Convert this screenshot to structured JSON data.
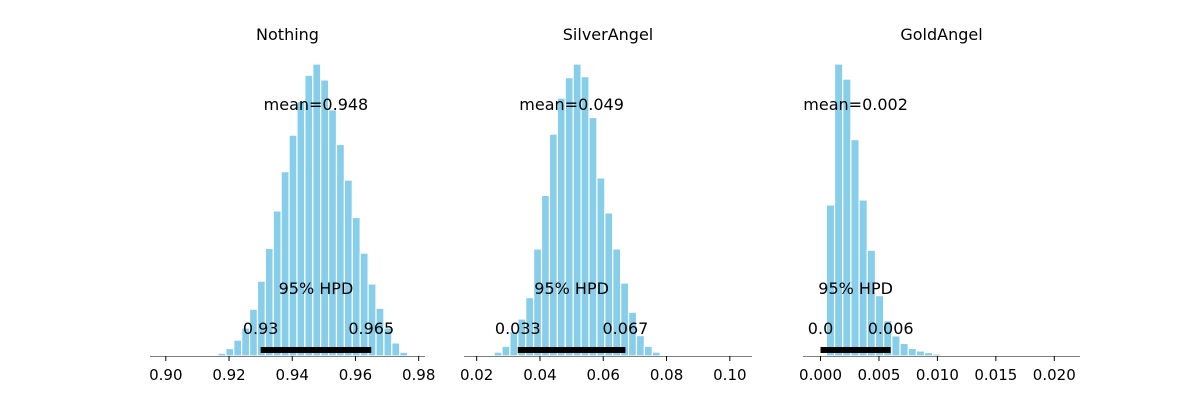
{
  "colors": {
    "bar": "#87ceeb",
    "hpd": "#000000",
    "axis": "#808080"
  },
  "chart_data": [
    {
      "type": "bar",
      "title": "Nothing",
      "xlim": [
        0.895,
        0.982
      ],
      "xticks": [
        0.9,
        0.92,
        0.94,
        0.96,
        0.98
      ],
      "xtick_labels": [
        "0.90",
        "0.92",
        "0.94",
        "0.96",
        "0.98"
      ],
      "bin_starts": [
        0.914,
        0.9165,
        0.919,
        0.9215,
        0.924,
        0.9265,
        0.929,
        0.9315,
        0.934,
        0.9365,
        0.939,
        0.9415,
        0.944,
        0.9465,
        0.949,
        0.9515,
        0.954,
        0.9565,
        0.959,
        0.9615,
        0.964,
        0.9665,
        0.969,
        0.9715,
        0.974
      ],
      "bin_width": 0.0025,
      "densities": [
        1,
        3,
        8,
        17,
        30,
        50,
        80,
        115,
        155,
        197,
        236,
        272,
        300,
        312,
        295,
        263,
        226,
        188,
        148,
        110,
        77,
        51,
        30,
        14,
        4
      ],
      "mean_text": "mean=0.948",
      "hpd_text": "95% HPD",
      "hpd_low": 0.93,
      "hpd_high": 0.965,
      "hpd_low_label": "0.93",
      "hpd_high_label": "0.965"
    },
    {
      "type": "bar",
      "title": "SilverAngel",
      "xlim": [
        0.016,
        0.107
      ],
      "xticks": [
        0.02,
        0.04,
        0.06,
        0.08,
        0.1
      ],
      "xtick_labels": [
        "0.02",
        "0.04",
        "0.06",
        "0.08",
        "0.10"
      ],
      "bin_starts": [
        0.0255,
        0.028,
        0.0305,
        0.033,
        0.0355,
        0.038,
        0.0405,
        0.043,
        0.0455,
        0.048,
        0.0505,
        0.053,
        0.0555,
        0.058,
        0.0605,
        0.063,
        0.0655,
        0.068,
        0.0705,
        0.073,
        0.0755,
        0.078
      ],
      "bin_width": 0.0025,
      "densities": [
        4,
        10,
        25,
        38,
        60,
        110,
        165,
        228,
        265,
        286,
        300,
        287,
        245,
        183,
        147,
        110,
        75,
        45,
        21,
        10,
        4,
        1
      ],
      "mean_text": "mean=0.049",
      "hpd_text": "95% HPD",
      "hpd_low": 0.033,
      "hpd_high": 0.067,
      "hpd_low_label": "0.033",
      "hpd_high_label": "0.067"
    },
    {
      "type": "bar",
      "title": "GoldAngel",
      "xlim": [
        -0.0015,
        0.0222
      ],
      "xticks": [
        0.0,
        0.005,
        0.01,
        0.015,
        0.02
      ],
      "xtick_labels": [
        "0.000",
        "0.005",
        "0.010",
        "0.015",
        "0.020"
      ],
      "bin_starts": [
        0.0005,
        0.0012,
        0.0019,
        0.0026,
        0.0033,
        0.004,
        0.0047,
        0.0054,
        0.0061,
        0.0068,
        0.0075,
        0.0082,
        0.0089,
        0.0096,
        0.0103
      ],
      "bin_width": 0.0007,
      "densities": [
        30,
        58,
        55,
        43,
        31,
        21,
        12,
        7,
        4,
        2.5,
        1.5,
        1,
        0.7,
        0.4,
        0.2
      ],
      "mean_text": "mean=0.002",
      "hpd_text": "95% HPD",
      "hpd_low": 0.0,
      "hpd_high": 0.006,
      "hpd_low_label": "0.0",
      "hpd_high_label": "0.006"
    }
  ]
}
